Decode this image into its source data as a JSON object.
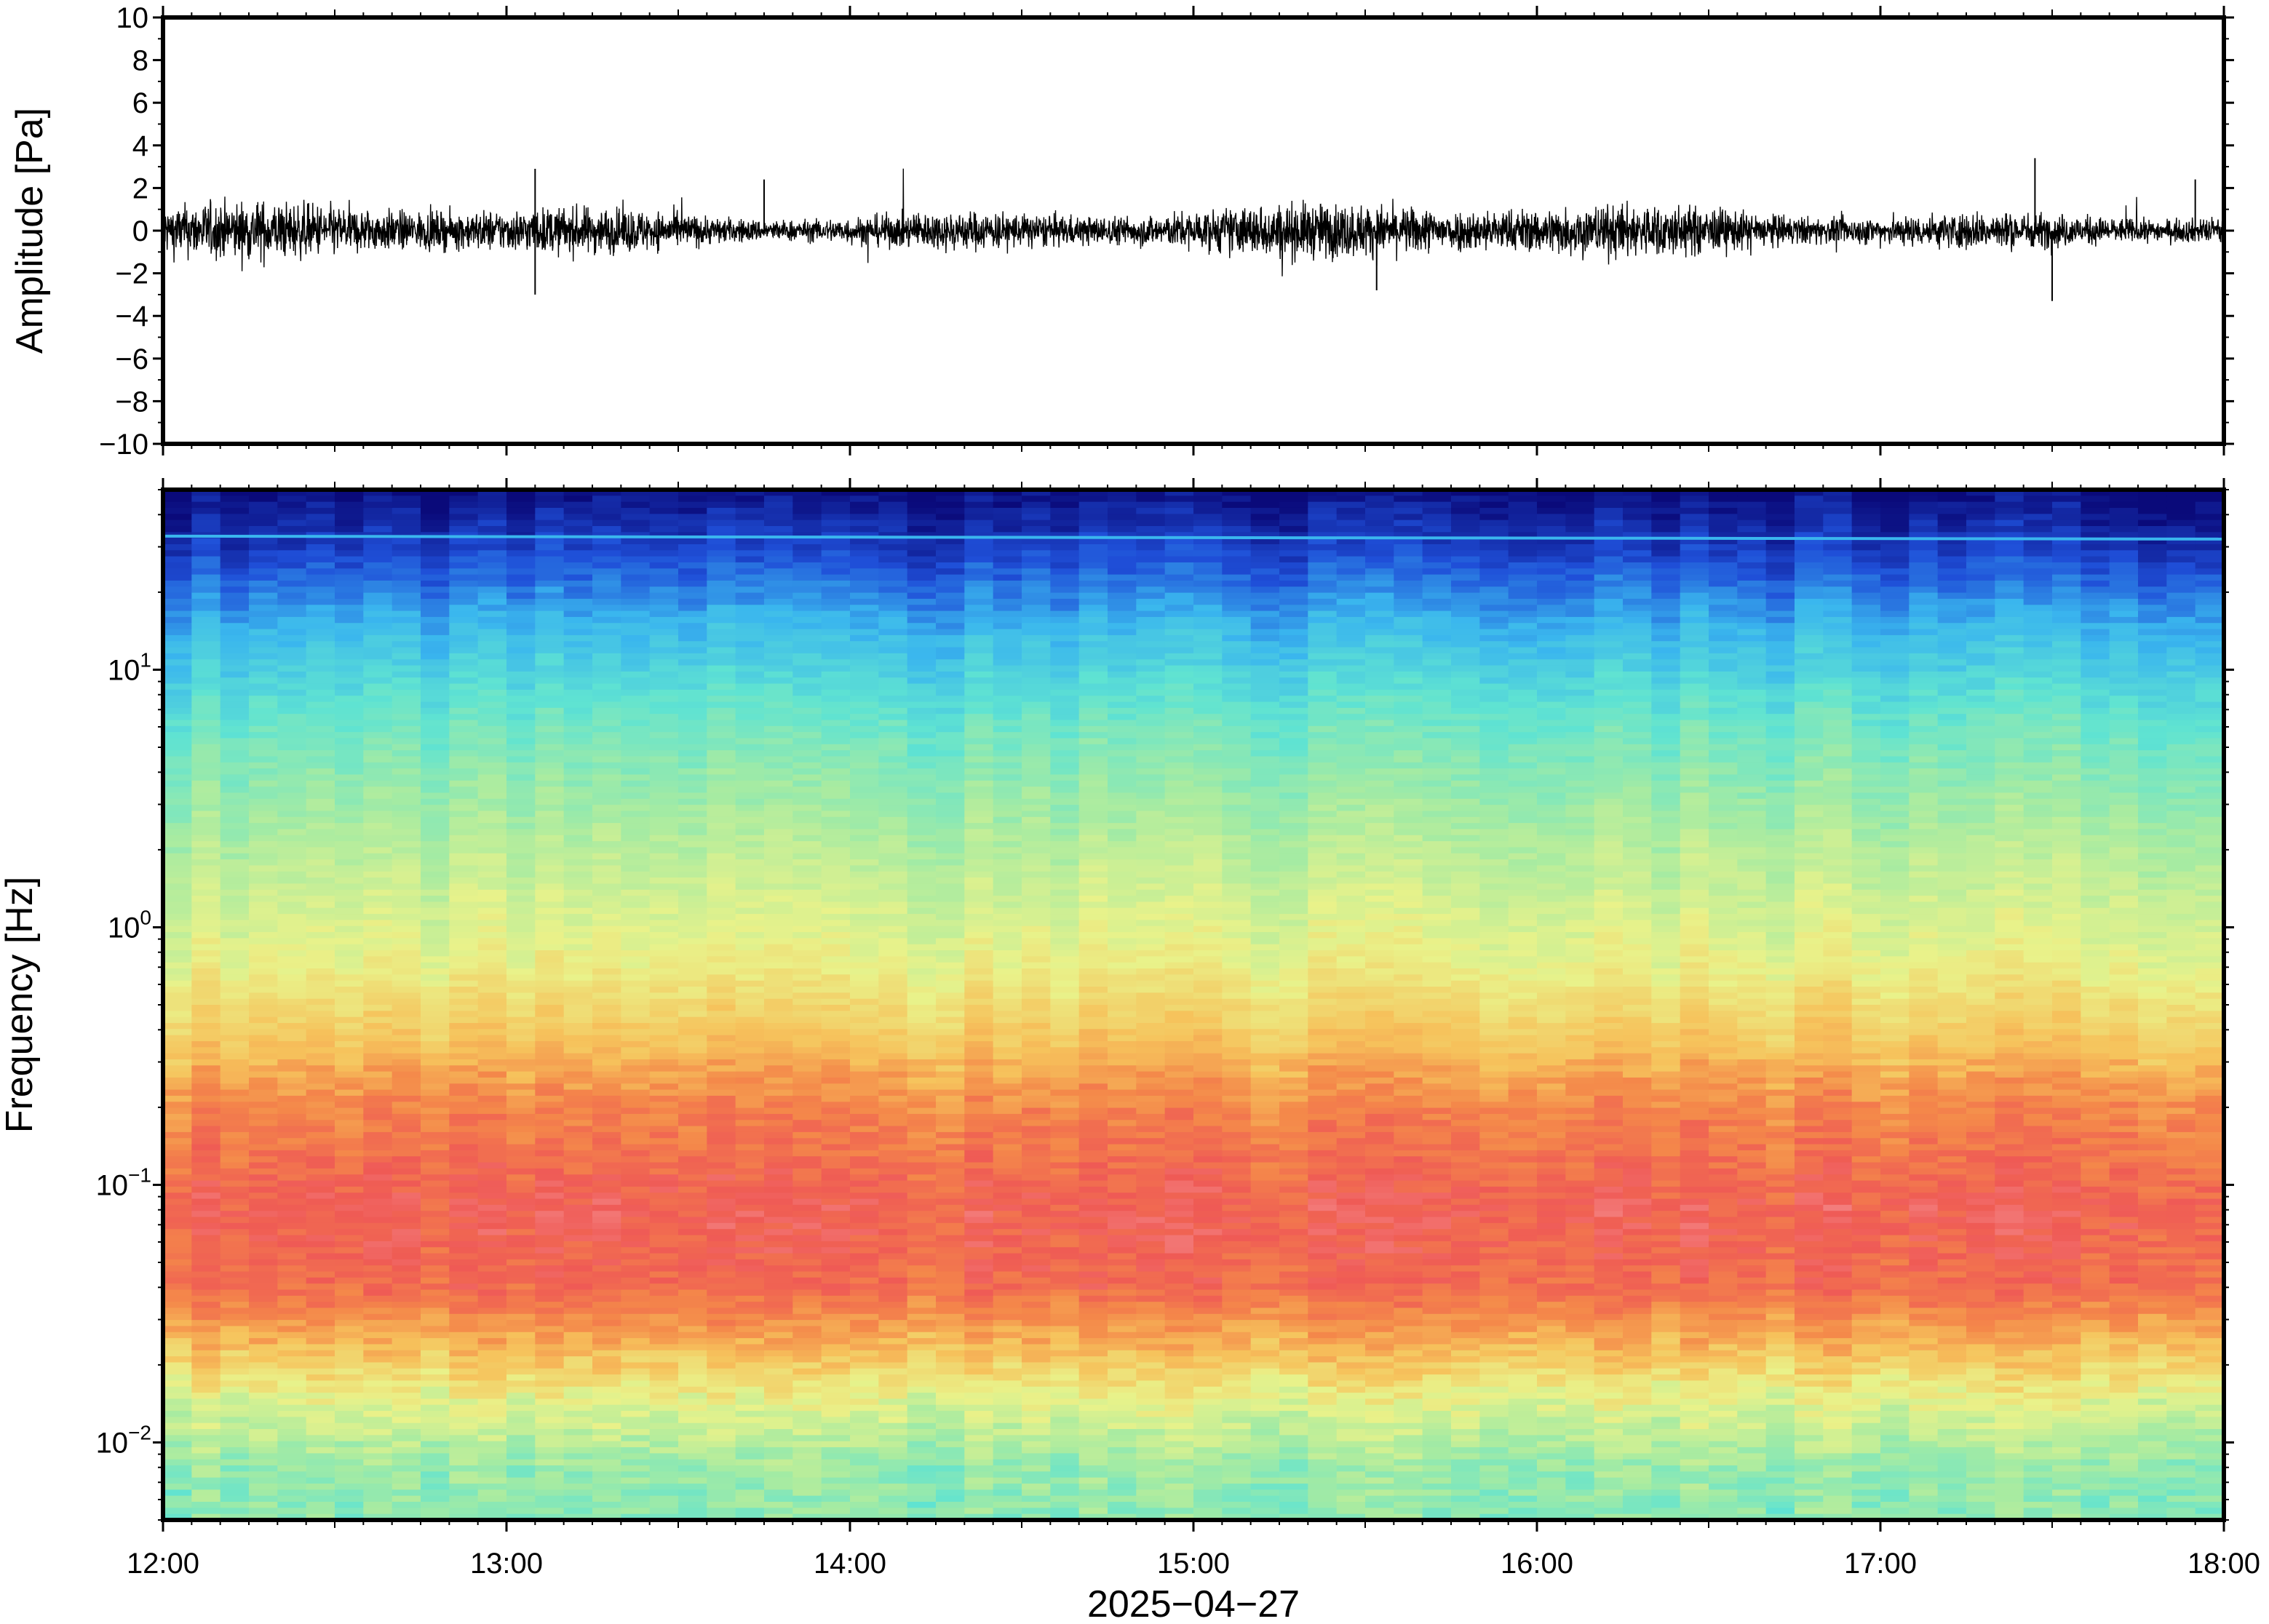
{
  "chart_data": [
    {
      "type": "line",
      "ylabel": "Amplitude [Pa]",
      "ylim": [
        -10,
        10
      ],
      "yticks": [
        "10",
        "8",
        "6",
        "4",
        "2",
        "0",
        "−2",
        "−4",
        "−6",
        "−8",
        "−10"
      ],
      "xlim": [
        "12:00",
        "18:00"
      ],
      "series": [
        {
          "description": "noisy pressure trace centered at 0",
          "typical_range_pa": [
            -1.5,
            1.5
          ],
          "peak_excursions_pa": [
            {
              "time": "13:05",
              "value": 2.9
            },
            {
              "time": "13:05",
              "value": -3.0
            },
            {
              "time": "13:45",
              "value": 2.4
            },
            {
              "time": "15:32",
              "value": -2.8
            },
            {
              "time": "17:27",
              "value": 3.4
            },
            {
              "time": "17:30",
              "value": -3.3
            },
            {
              "time": "17:55",
              "value": 2.4
            }
          ],
          "color": "#000000"
        }
      ],
      "grid": false
    },
    {
      "type": "heatmap",
      "ylabel": "Frequency [Hz]",
      "yscale": "log",
      "ylim": [
        0.005,
        50
      ],
      "yticks": [
        {
          "base": "10",
          "exp": "1",
          "value": 10
        },
        {
          "base": "10",
          "exp": "0",
          "value": 1
        },
        {
          "base": "10",
          "exp": "−1",
          "value": 0.1
        },
        {
          "base": "10",
          "exp": "−2",
          "value": 0.01
        }
      ],
      "xlabel": "2025−04−27",
      "xticks": [
        "12:00",
        "13:00",
        "14:00",
        "15:00",
        "16:00",
        "17:00",
        "18:00"
      ],
      "colormap": [
        "#0a0a7a",
        "#1f4fd8",
        "#3ab6ee",
        "#5fe3d2",
        "#a6eba2",
        "#e9f28a",
        "#f6c35c",
        "#f4884a",
        "#ef5a55",
        "#f79a9c"
      ],
      "spectral_bands_hz": [
        {
          "range": [
            25,
            50
          ],
          "level": "lowest (dark blue)"
        },
        {
          "range": [
            33,
            33
          ],
          "level": "narrow line (light blue)"
        },
        {
          "range": [
            3,
            25
          ],
          "level": "low (blue to cyan)"
        },
        {
          "range": [
            0.5,
            3
          ],
          "level": "medium (green-yellow)"
        },
        {
          "range": [
            0.2,
            0.5
          ],
          "level": "medium-high (orange)"
        },
        {
          "range": [
            0.03,
            0.2
          ],
          "level": "highest (red to pink)"
        },
        {
          "range": [
            0.005,
            0.02
          ],
          "level": "medium (yellow-green to cyan)"
        }
      ],
      "time_columns": 72
    }
  ]
}
